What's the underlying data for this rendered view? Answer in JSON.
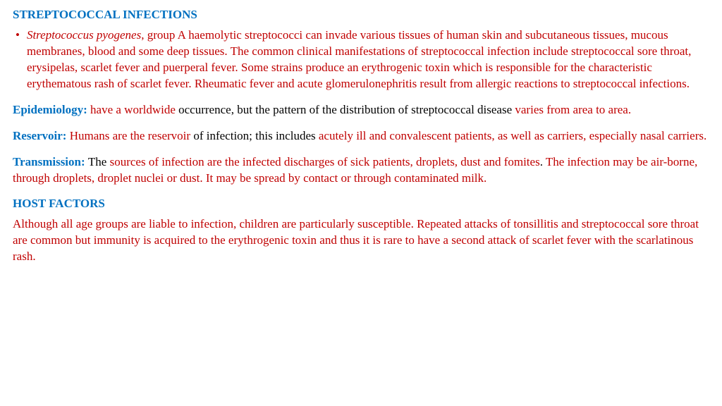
{
  "colors": {
    "heading_blue": "#0070c0",
    "body_red": "#c00000",
    "body_black": "#000000",
    "background": "#ffffff"
  },
  "typography": {
    "font_family": "Times New Roman",
    "title_fontsize": 17,
    "body_fontsize": 17,
    "line_height": 1.35
  },
  "title": "STREPTOCOCCAL INFECTIONS",
  "bullet": {
    "marker": "•",
    "italic_lead": "Streptococcus pyogenes",
    "rest": ", group A haemolytic streptococci can invade various tissues of human skin and subcutaneous tissues, mucous membranes, blood and some deep tissues. The common clinical manifestations of streptococcal infection include streptococcal sore throat, erysipelas, scarlet fever and puerperal fever. Some strains produce an erythrogenic toxin which is responsible for the characteristic erythematous rash of scarlet fever. Rheumatic fever and acute glomerulonephritis result from allergic reactions to streptococcal infections."
  },
  "epidemiology": {
    "label": "Epidemiology: ",
    "red1": "have a worldwide ",
    "black1": "occurrence, but the pattern of the distribution of streptococcal disease ",
    "red2": "varies from area to area."
  },
  "reservoir": {
    "label": "Reservoir: ",
    "red1": "Humans are the reservoir ",
    "black1": "of infection; this includes ",
    "red2": "acutely ill and convalescent patients, as well as carriers, especially nasal carriers."
  },
  "transmission": {
    "label": "Transmission: ",
    "black1": "The ",
    "red1": "sources of infection are the infected discharges of sick patients, droplets, dust and fomites",
    "black2": ". ",
    "red2": "The infection may be air-borne, through droplets, droplet nuclei or dust. It may be spread by contact or through contaminated milk."
  },
  "host_header": "HOST FACTORS",
  "host_text": "Although all age groups are liable to infection, children are particularly susceptible. Repeated attacks of tonsillitis and streptococcal sore throat are common but immunity is acquired to the erythrogenic toxin and thus it is rare to have a second attack of scarlet fever with the scarlatinous rash."
}
